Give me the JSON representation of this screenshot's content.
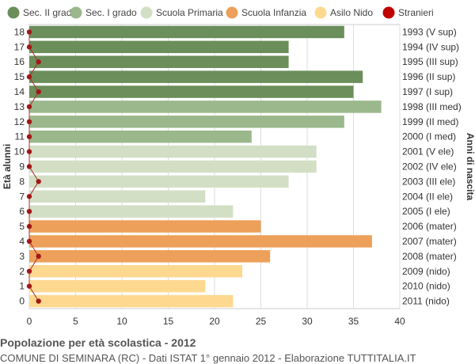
{
  "chart_data": {
    "type": "bar",
    "orientation": "horizontal",
    "title": "Popolazione per età scolastica - 2012",
    "subtitle": "COMUNE DI SEMINARA (RC) - Dati ISTAT 1° gennaio 2012 - Elaborazione TUTTITALIA.IT",
    "ylabel": "Età alunni",
    "ylabel_right": "Anni di nascita",
    "xlim": [
      0,
      40
    ],
    "x_ticks": [
      0,
      5,
      10,
      15,
      20,
      25,
      30,
      35,
      40
    ],
    "grid": true,
    "legend_position": "top",
    "legend": [
      {
        "name": "Sec. II grado",
        "color": "#6b8e5a"
      },
      {
        "name": "Sec. I grado",
        "color": "#9bb88c"
      },
      {
        "name": "Scuola Primaria",
        "color": "#d3dfc5"
      },
      {
        "name": "Scuola Infanzia",
        "color": "#eda05a"
      },
      {
        "name": "Asilo Nido",
        "color": "#fdd990"
      },
      {
        "name": "Stranieri",
        "color": "#c00000"
      }
    ],
    "ages": [
      18,
      17,
      16,
      15,
      14,
      13,
      12,
      11,
      10,
      9,
      8,
      7,
      6,
      5,
      4,
      3,
      2,
      1,
      0
    ],
    "birth_years": [
      "1993 (V sup)",
      "1994 (IV sup)",
      "1995 (III sup)",
      "1996 (II sup)",
      "1997 (I sup)",
      "1998 (III med)",
      "1999 (II med)",
      "2000 (I med)",
      "2001 (V ele)",
      "2002 (IV ele)",
      "2003 (III ele)",
      "2004 (II ele)",
      "2005 (I ele)",
      "2006 (mater)",
      "2007 (mater)",
      "2008 (mater)",
      "2009 (nido)",
      "2010 (nido)",
      "2011 (nido)"
    ],
    "values": [
      34,
      28,
      28,
      36,
      35,
      38,
      34,
      24,
      31,
      31,
      28,
      19,
      22,
      25,
      37,
      26,
      23,
      19,
      22
    ],
    "groups": [
      0,
      0,
      0,
      0,
      0,
      1,
      1,
      1,
      2,
      2,
      2,
      2,
      2,
      3,
      3,
      3,
      4,
      4,
      4
    ],
    "stranieri": [
      0,
      0,
      1,
      0,
      1,
      0,
      0,
      0,
      0,
      0,
      1,
      0,
      0,
      0,
      0,
      1,
      0,
      0,
      1
    ]
  }
}
